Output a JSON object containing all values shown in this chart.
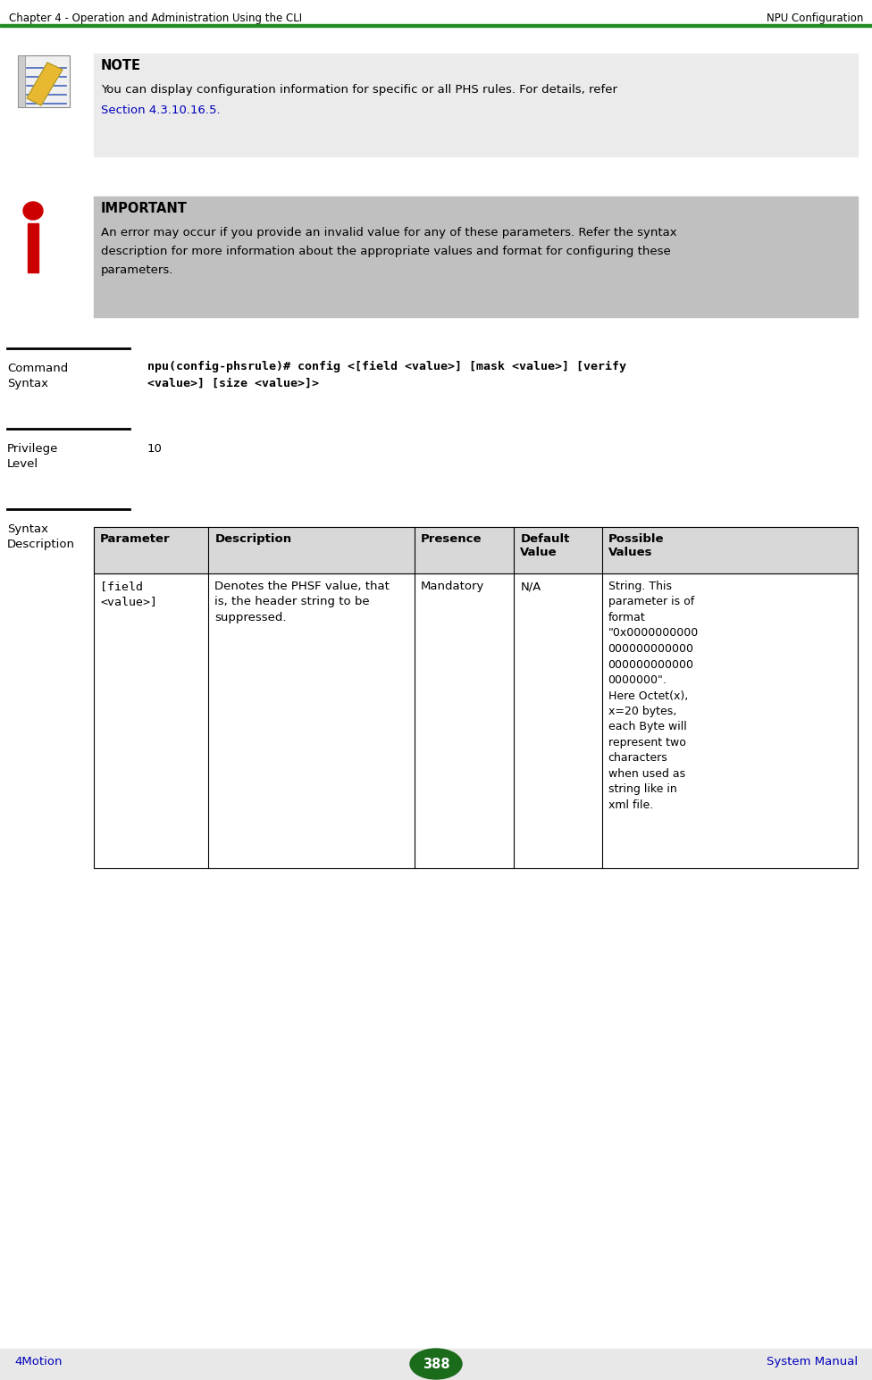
{
  "header_left": "Chapter 4 - Operation and Administration Using the CLI",
  "header_right": "NPU Configuration",
  "header_line_color": "#228B22",
  "footer_left": "4Motion",
  "footer_right": "System Manual",
  "footer_page": "388",
  "footer_bg": "#E8E8E8",
  "footer_text_color": "#0000BB",
  "footer_circle_color": "#1A6B1A",
  "note_label": "NOTE",
  "note_bg": "#EBEBEB",
  "note_text_line1": "You can display configuration information for specific or all PHS rules. For details, refer",
  "note_link": "Section 4.3.10.16.5.",
  "note_link_color": "#0000BB",
  "important_label": "IMPORTANT",
  "important_bg": "#C0C0C0",
  "important_text_line1": "An error may occur if you provide an invalid value for any of these parameters. Refer the syntax",
  "important_text_line2": "description for more information about the appropriate values and format for configuring these",
  "important_text_line3": "parameters.",
  "command_label": "Command",
  "command_label2": "Syntax",
  "cmd_line1": "npu(config-phsrule)# config <[field <value>] [mask <value>] [verify",
  "cmd_line2": "<value>] [size <value>]>",
  "privilege_label": "Privilege",
  "privilege_label2": "Level",
  "privilege_value": "10",
  "syntax_label": "Syntax",
  "syntax_label2": "Description",
  "table_headers": [
    "Parameter",
    "Description",
    "Presence",
    "Default\nValue",
    "Possible\nValues"
  ],
  "table_header_bg": "#D8D8D8",
  "table_row1_col1": "[field\n<value>]",
  "table_row1_col2": "Denotes the PHSF value, that\nis, the header string to be\nsuppressed.",
  "table_row1_col3": "Mandatory",
  "table_row1_col4": "N/A",
  "table_row1_col5": "String. This\nparameter is of\nformat\n\"0x0000000000\n000000000000\n000000000000\n0000000\".\nHere Octet(x),\nx=20 bytes,\neach Byte will\nrepresent two\ncharacters\nwhen used as\nstring like in\nxml file.",
  "section_line_color": "#000000",
  "bg_color": "#FFFFFF",
  "text_color": "#000000"
}
